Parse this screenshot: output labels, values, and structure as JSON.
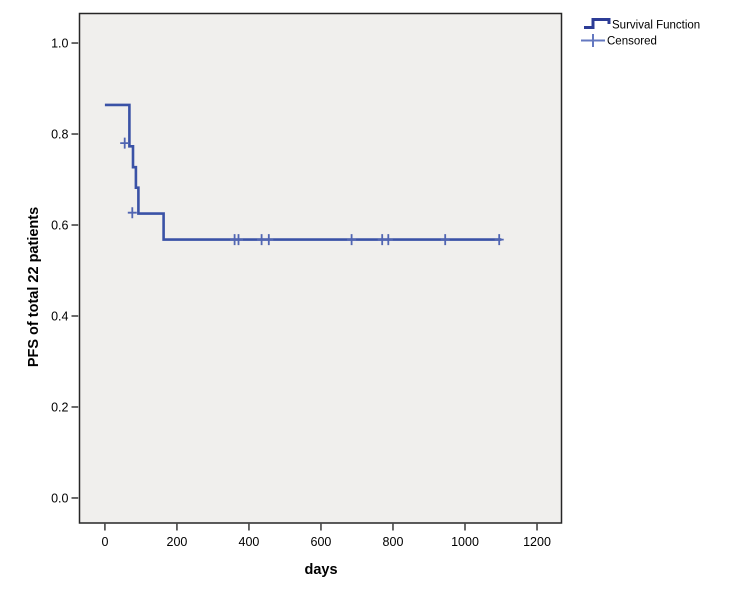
{
  "chart_data": {
    "type": "line",
    "subtype": "kaplan-meier-step-curve",
    "title": "",
    "xlabel": "days",
    "ylabel": "PFS of total 22 patients",
    "x_ticks": [
      {
        "v": 0,
        "label": "0"
      },
      {
        "v": 200,
        "label": "200"
      },
      {
        "v": 400,
        "label": "400"
      },
      {
        "v": 600,
        "label": "600"
      },
      {
        "v": 800,
        "label": "800"
      },
      {
        "v": 1000,
        "label": "1000"
      },
      {
        "v": 1200,
        "label": "1200"
      }
    ],
    "y_ticks": [
      {
        "v": 0.0,
        "label": "0.0"
      },
      {
        "v": 0.2,
        "label": "0.2"
      },
      {
        "v": 0.4,
        "label": "0.4"
      },
      {
        "v": 0.6,
        "label": "0.6"
      },
      {
        "v": 0.8,
        "label": "0.8"
      },
      {
        "v": 1.0,
        "label": "1.0"
      }
    ],
    "xlim": [
      -72,
      1268
    ],
    "ylim": [
      -0.055,
      1.066
    ],
    "grid": false,
    "series": [
      {
        "name": "Survival Function",
        "style": "step",
        "color": "#3A52A6",
        "points": [
          {
            "t": 0,
            "s": 0.864
          },
          {
            "t": 68,
            "s": 0.773
          },
          {
            "t": 78,
            "s": 0.727
          },
          {
            "t": 86,
            "s": 0.682
          },
          {
            "t": 93,
            "s": 0.625
          },
          {
            "t": 163,
            "s": 0.568
          }
        ],
        "end_t": 1101
      }
    ],
    "censored": {
      "name": "Censored",
      "marker": "plus",
      "color": "#5065B2",
      "points": [
        {
          "t": 55,
          "s": 0.78
        },
        {
          "t": 76,
          "s": 0.627
        },
        {
          "t": 360,
          "s": 0.568
        },
        {
          "t": 371,
          "s": 0.568
        },
        {
          "t": 435,
          "s": 0.568
        },
        {
          "t": 455,
          "s": 0.568
        },
        {
          "t": 685,
          "s": 0.568
        },
        {
          "t": 770,
          "s": 0.568
        },
        {
          "t": 787,
          "s": 0.568
        },
        {
          "t": 945,
          "s": 0.568
        },
        {
          "t": 1095,
          "s": 0.568
        }
      ]
    },
    "legend": {
      "position": "top-right",
      "items": [
        {
          "label": "Survival Function",
          "glyph": "step-line-icon",
          "color": "#2C3C96"
        },
        {
          "label": "Censored",
          "glyph": "plus-icon",
          "color": "#6478C0"
        }
      ]
    },
    "colors": {
      "plot_background": "#F0EFED",
      "frame": "#262626",
      "tick": "#1A1A1A",
      "page_background": "#FFFFFF"
    }
  }
}
